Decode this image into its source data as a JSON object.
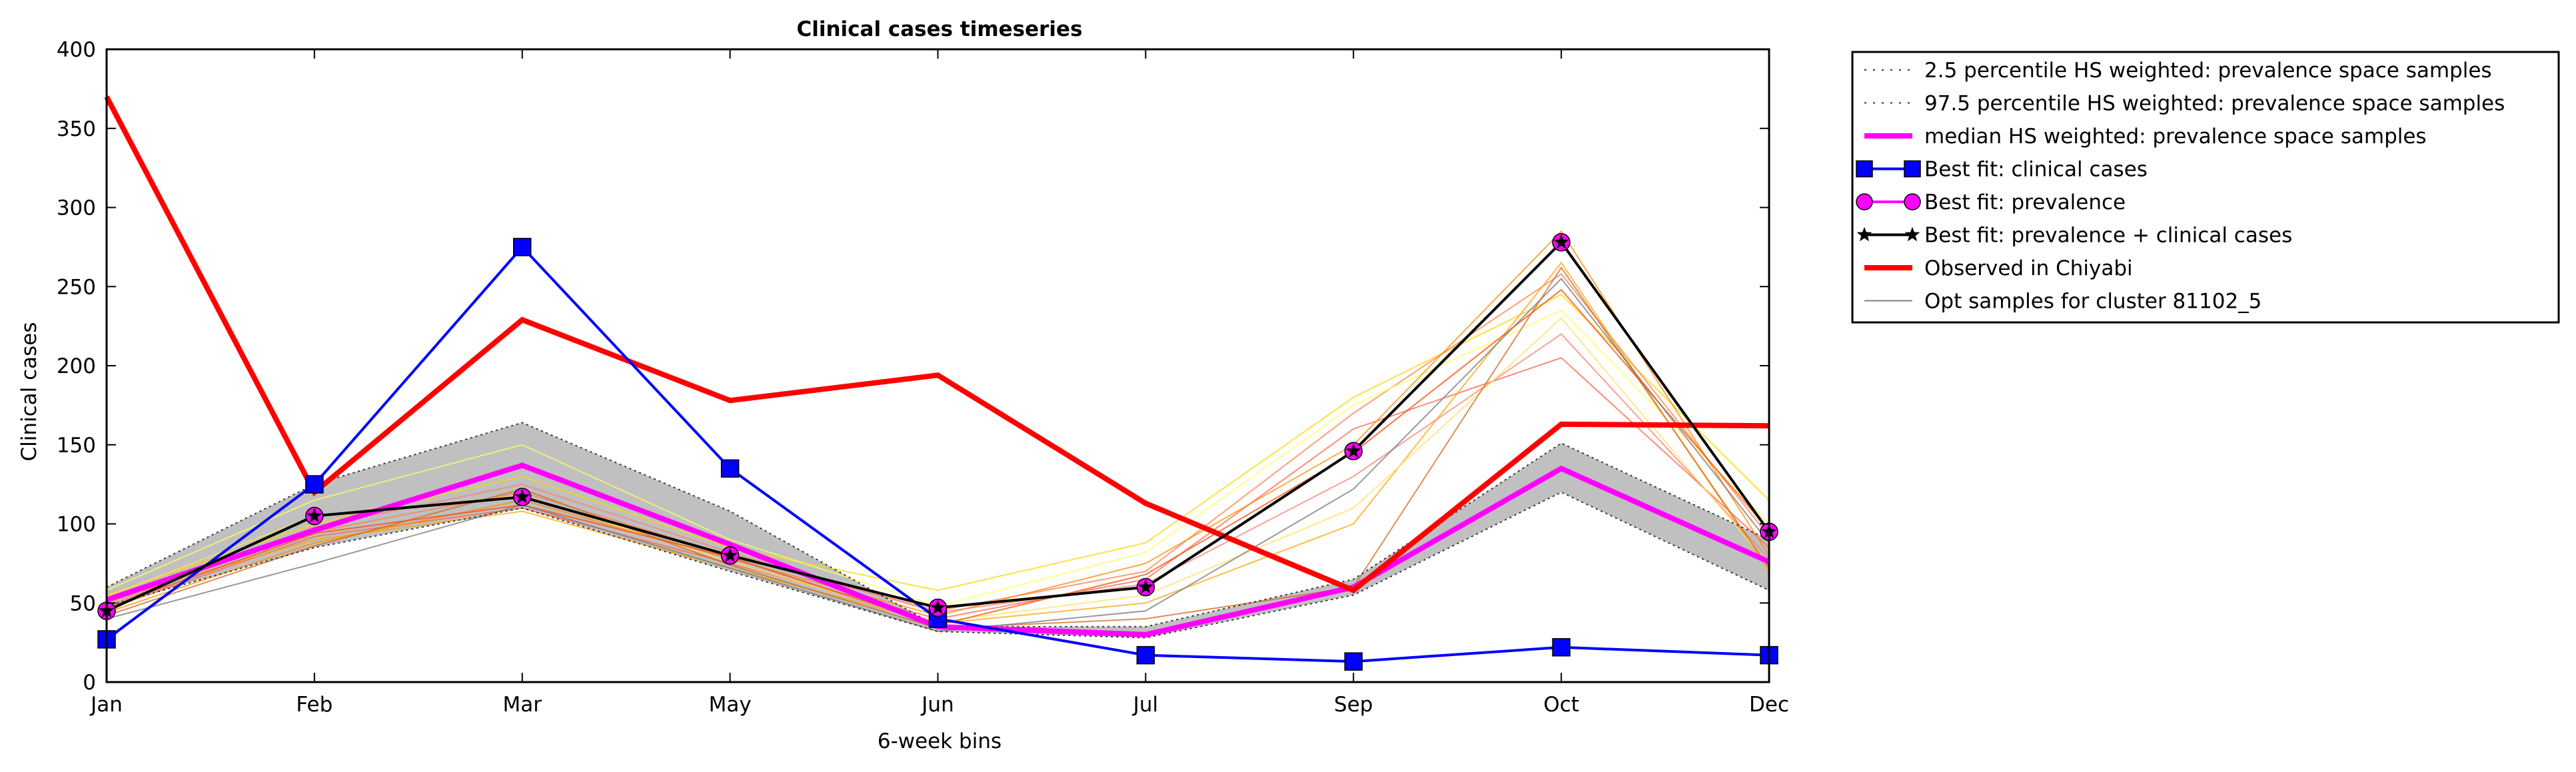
{
  "chart_data": {
    "type": "line",
    "title": "Clinical cases timeseries",
    "xlabel": "6-week bins",
    "ylabel": "Clinical cases",
    "categories": [
      "Jan",
      "Feb",
      "Mar",
      "May",
      "Jun",
      "Jul",
      "Sep",
      "Oct",
      "Dec"
    ],
    "ylim": [
      0,
      400
    ],
    "yticks": [
      "0",
      "50",
      "100",
      "150",
      "200",
      "250",
      "300",
      "350",
      "400"
    ],
    "grid": false,
    "legend_position": "outside top-right",
    "band": {
      "lower": [
        48,
        85,
        110,
        70,
        32,
        28,
        55,
        120,
        58
      ],
      "upper": [
        60,
        125,
        164,
        108,
        35,
        35,
        65,
        151,
        90
      ],
      "color": "#c0c0c0"
    },
    "series": [
      {
        "name": "2.5 percentile HS weighted: prevalence space samples",
        "style": "dotted",
        "color": "#000000",
        "values": [
          48,
          85,
          110,
          70,
          32,
          28,
          55,
          120,
          58
        ]
      },
      {
        "name": "97.5 percentile HS weighted: prevalence space samples",
        "style": "dotted",
        "color": "#000000",
        "values": [
          60,
          125,
          164,
          108,
          35,
          35,
          65,
          151,
          90
        ]
      },
      {
        "name": "median HS weighted: prevalence space samples",
        "style": "solid",
        "color": "#ff00ff",
        "values": [
          52,
          96,
          137,
          87,
          35,
          30,
          60,
          135,
          76
        ]
      },
      {
        "name": "Best fit: clinical cases",
        "style": "solid",
        "color": "#0000ff",
        "marker": "square",
        "values": [
          27,
          125,
          275,
          135,
          40,
          17,
          13,
          22,
          17
        ]
      },
      {
        "name": "Best fit: prevalence",
        "style": "solid",
        "color": "#ff00ff",
        "marker": "circle",
        "values": [
          45,
          105,
          117,
          80,
          47,
          60,
          146,
          278,
          95
        ]
      },
      {
        "name": "Best fit: prevalence + clinical cases",
        "style": "solid",
        "color": "#000000",
        "marker": "star",
        "values": [
          45,
          105,
          117,
          80,
          47,
          60,
          146,
          278,
          95
        ]
      },
      {
        "name": "Observed in Chiyabi",
        "style": "solid",
        "color": "#ff0000",
        "values": [
          370,
          120,
          229,
          178,
          194,
          113,
          58,
          163,
          162
        ]
      },
      {
        "name": "Opt samples for cluster 81102_5",
        "style": "solid",
        "color": "#808080",
        "values": [
          40,
          75,
          112,
          72,
          32,
          45,
          122,
          255,
          88
        ]
      }
    ],
    "extra_samples": [
      {
        "color": "#ffd700",
        "values": [
          55,
          100,
          130,
          85,
          58,
          88,
          180,
          245,
          115
        ]
      },
      {
        "color": "#ff7f50",
        "values": [
          50,
          95,
          120,
          80,
          45,
          70,
          170,
          258,
          92
        ]
      },
      {
        "color": "#ff6347",
        "values": [
          46,
          92,
          110,
          75,
          40,
          65,
          160,
          205,
          85
        ]
      },
      {
        "color": "#ffa500",
        "values": [
          52,
          90,
          108,
          72,
          37,
          50,
          100,
          265,
          70
        ]
      },
      {
        "color": "#ffff66",
        "values": [
          58,
          115,
          150,
          90,
          48,
          82,
          175,
          235,
          100
        ]
      },
      {
        "color": "#ff8c00",
        "values": [
          44,
          88,
          115,
          78,
          42,
          75,
          150,
          285,
          80
        ]
      },
      {
        "color": "#fa8072",
        "values": [
          48,
          98,
          125,
          82,
          44,
          62,
          130,
          220,
          78
        ]
      },
      {
        "color": "#ffe066",
        "values": [
          54,
          105,
          118,
          76,
          38,
          55,
          110,
          230,
          74
        ]
      },
      {
        "color": "#d2691e",
        "values": [
          42,
          86,
          122,
          74,
          34,
          40,
          60,
          262,
          72
        ]
      },
      {
        "color": "#ff4500",
        "values": [
          47,
          94,
          112,
          79,
          36,
          68,
          145,
          248,
          96
        ]
      }
    ]
  }
}
